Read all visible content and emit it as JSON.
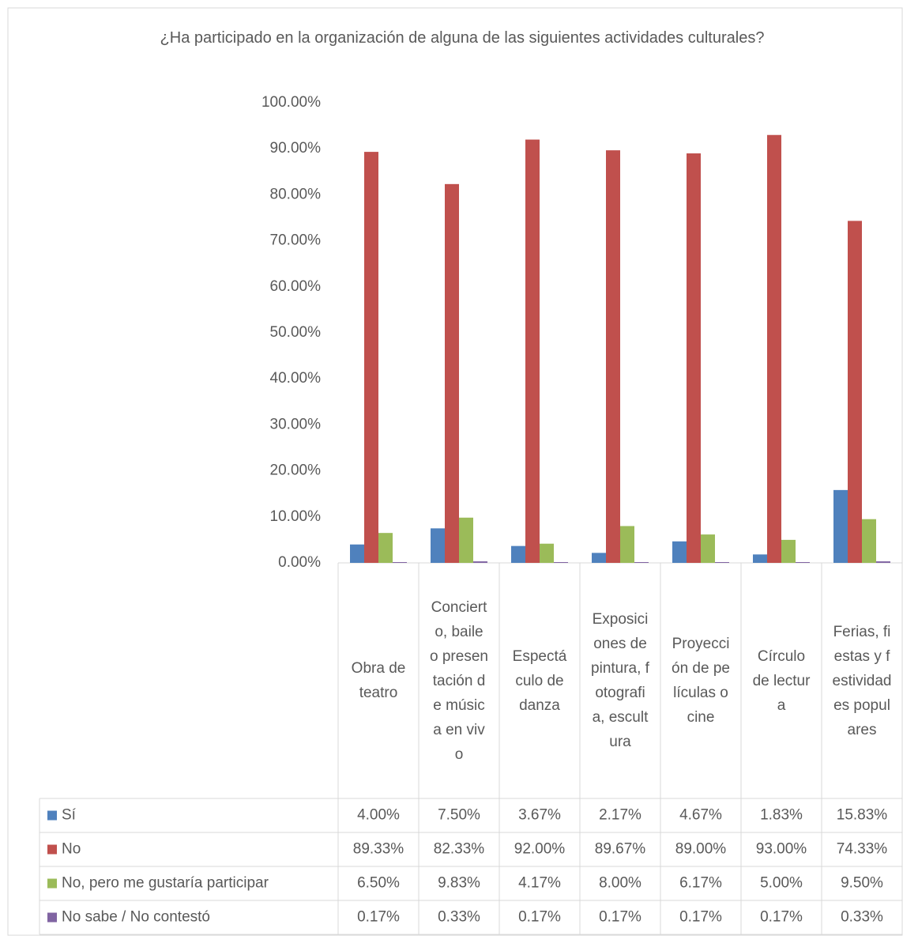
{
  "chart_data": {
    "type": "bar",
    "title": "¿Ha participado en la organización de alguna de las siguientes actividades culturales?",
    "categories": [
      "Obra de teatro",
      "Concierto, baile o presentación de música en vivo",
      "Espectáculo de danza",
      "Exposiciones de pintura, fotografia, escultura",
      "Proyección de películas o cine",
      "Círculo de lectura",
      "Ferias, fiestas y festividades populares"
    ],
    "series": [
      {
        "name": "Sí",
        "color": "#4f81bd",
        "values": [
          4.0,
          7.5,
          3.67,
          2.17,
          4.67,
          1.83,
          15.83
        ],
        "value_labels": [
          "4.00%",
          "7.50%",
          "3.67%",
          "2.17%",
          "4.67%",
          "1.83%",
          "15.83%"
        ]
      },
      {
        "name": "No",
        "color": "#c0504d",
        "values": [
          89.33,
          82.33,
          92.0,
          89.67,
          89.0,
          93.0,
          74.33
        ],
        "value_labels": [
          "89.33%",
          "82.33%",
          "92.00%",
          "89.67%",
          "89.00%",
          "93.00%",
          "74.33%"
        ]
      },
      {
        "name": "No, pero me gustaría participar",
        "color": "#9bbb59",
        "values": [
          6.5,
          9.83,
          4.17,
          8.0,
          6.17,
          5.0,
          9.5
        ],
        "value_labels": [
          "6.50%",
          "9.83%",
          "4.17%",
          "8.00%",
          "6.17%",
          "5.00%",
          "9.50%"
        ]
      },
      {
        "name": "No sabe / No contestó",
        "color": "#8064a2",
        "values": [
          0.17,
          0.33,
          0.17,
          0.17,
          0.17,
          0.17,
          0.33
        ],
        "value_labels": [
          "0.17%",
          "0.33%",
          "0.17%",
          "0.17%",
          "0.17%",
          "0.17%",
          "0.33%"
        ]
      }
    ],
    "ylim": [
      0,
      100
    ],
    "yticks": [
      {
        "value": 0,
        "label": "0.00%"
      },
      {
        "value": 10,
        "label": "10.00%"
      },
      {
        "value": 20,
        "label": "20.00%"
      },
      {
        "value": 30,
        "label": "30.00%"
      },
      {
        "value": 40,
        "label": "40.00%"
      },
      {
        "value": 50,
        "label": "50.00%"
      },
      {
        "value": 60,
        "label": "60.00%"
      },
      {
        "value": 70,
        "label": "70.00%"
      },
      {
        "value": 80,
        "label": "80.00%"
      },
      {
        "value": 90,
        "label": "90.00%"
      },
      {
        "value": 100,
        "label": "100.00%"
      }
    ],
    "grid": false
  }
}
